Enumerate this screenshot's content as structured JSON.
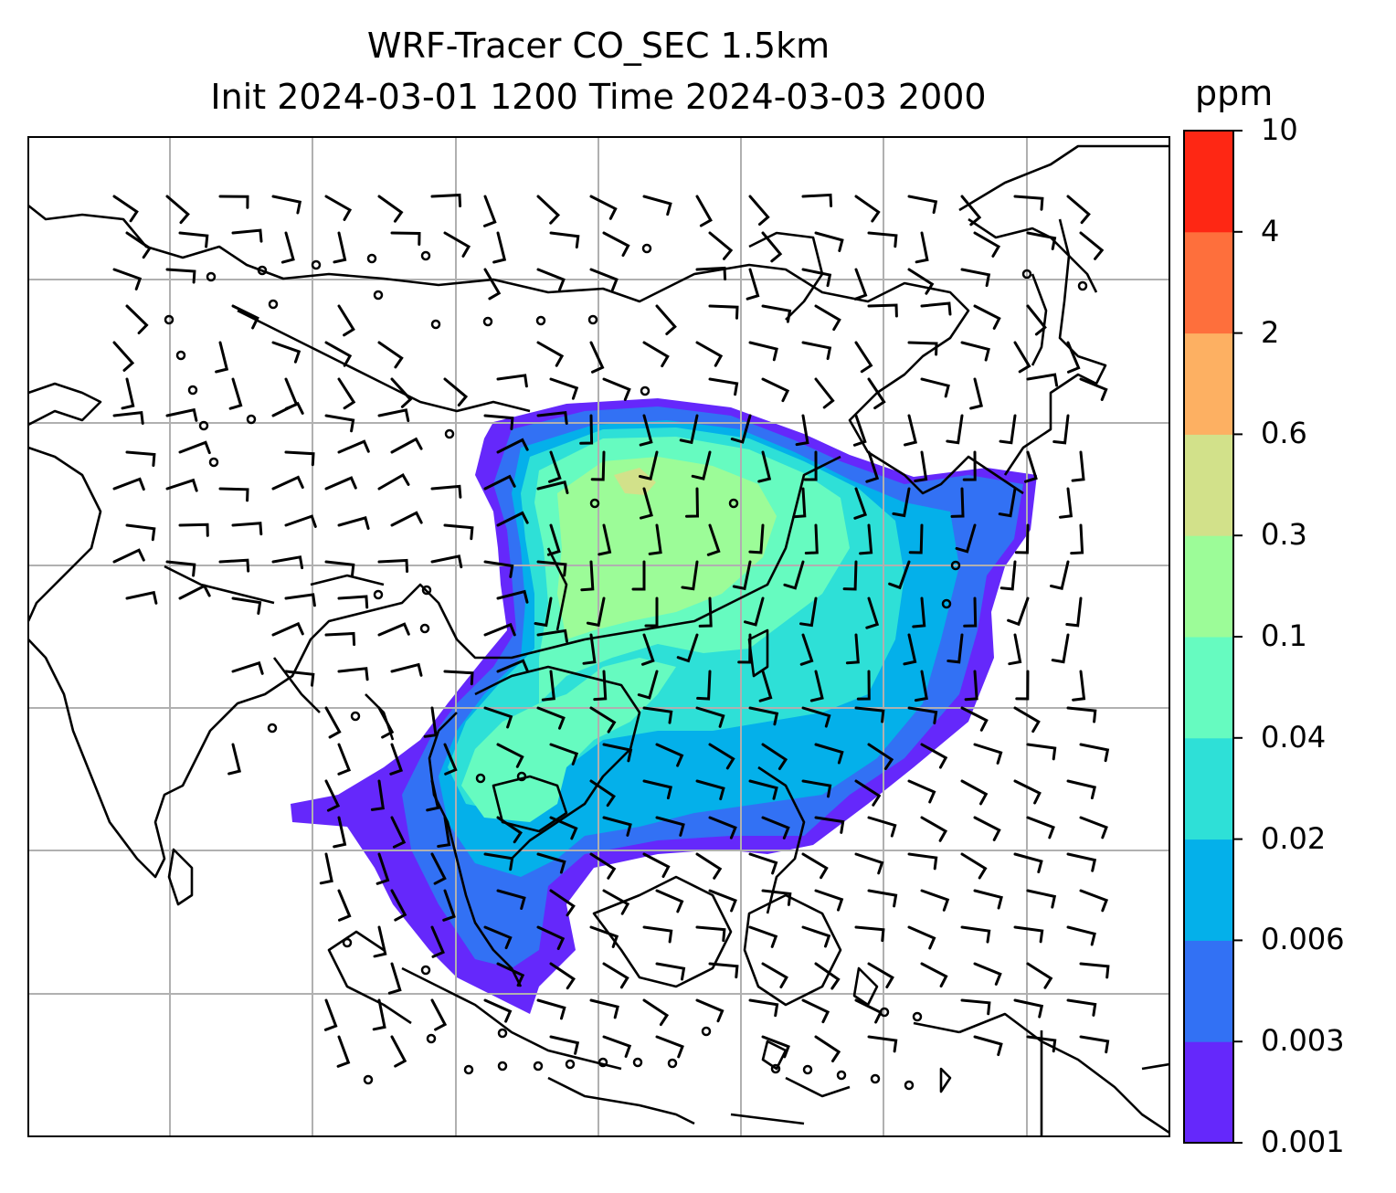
{
  "title_line1": "WRF-Tracer CO_SEC 1.5km",
  "title_line2": "Init 2024-03-01 1200 Time 2024-03-03 2000",
  "colorbar": {
    "unit": "ppm",
    "levels": [
      "0.001",
      "0.003",
      "0.006",
      "0.02",
      "0.04",
      "0.1",
      "0.3",
      "0.6",
      "2",
      "4",
      "10"
    ],
    "colors": [
      "#6528fb",
      "#3271f4",
      "#04b0ea",
      "#2ee0d7",
      "#66fbc0",
      "#9cfc98",
      "#d2e18a",
      "#fdb062",
      "#fe6f3c",
      "#fe2714"
    ]
  },
  "map": {
    "coastline_color": "#000000",
    "gridline_color": "#b0b0b0",
    "background": "#ffffff"
  }
}
